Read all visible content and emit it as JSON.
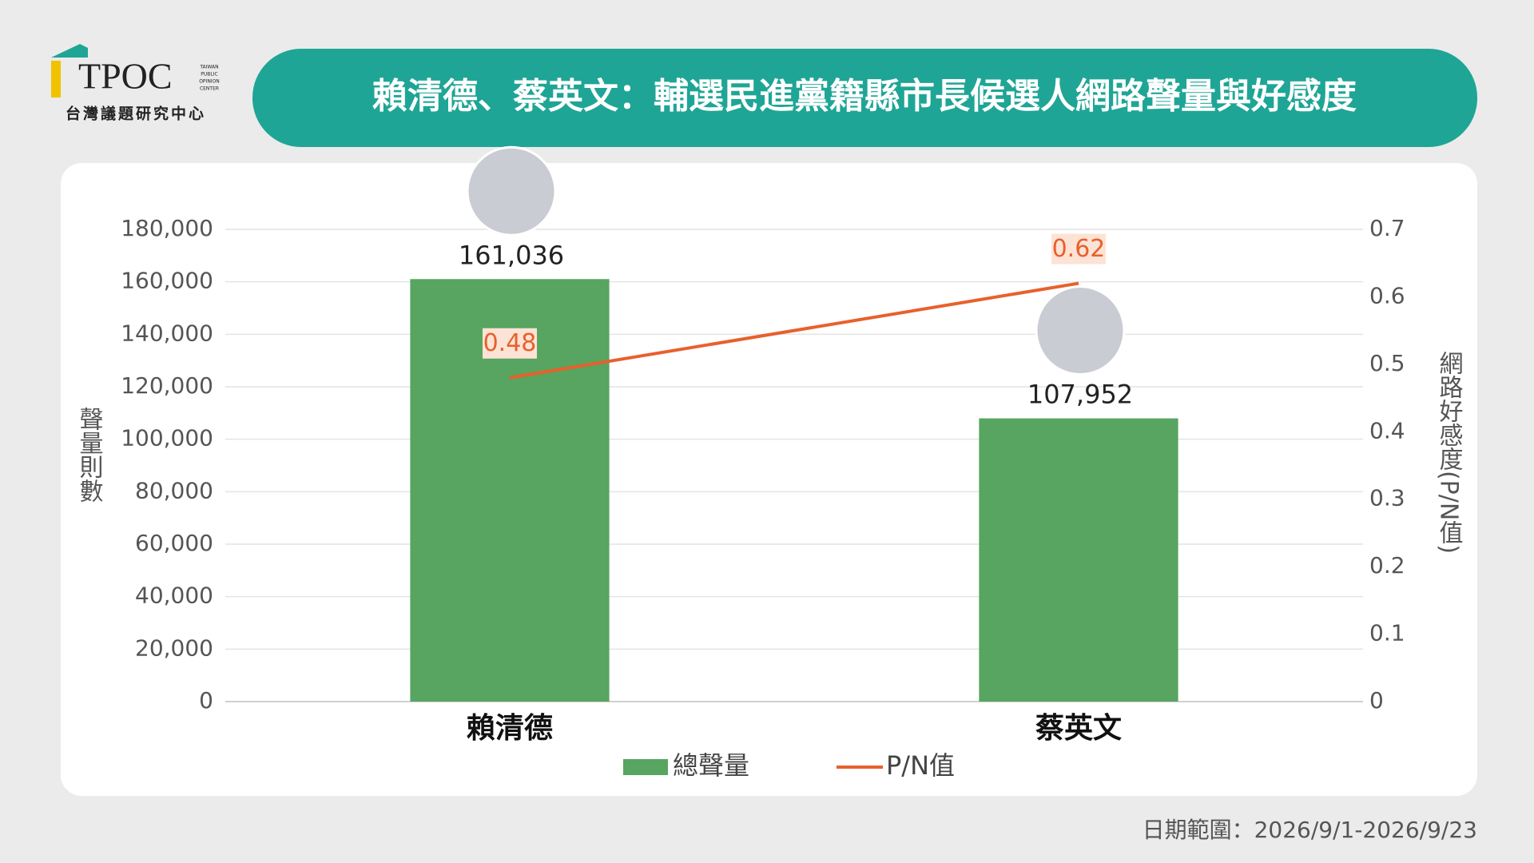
{
  "logo": {
    "name": "TPOC",
    "tag": [
      "TAIWAN",
      "PUBLIC",
      "OPINION",
      "CENTER"
    ],
    "subtitle": "台灣議題研究中心"
  },
  "chart_data": {
    "type": "bar",
    "title": "賴清德、蔡英文：輔選民進黨籍縣市長候選人網路聲量與好感度",
    "categories": [
      "賴清德",
      "蔡英文"
    ],
    "series": [
      {
        "name": "總聲量",
        "color": "#57a560",
        "values": [
          161036,
          107952
        ],
        "value_labels": [
          "161,036",
          "107,952"
        ]
      },
      {
        "name": "P/N值",
        "type": "line",
        "axis": "y2",
        "color": "#e8602c",
        "values": [
          0.48,
          0.62
        ]
      }
    ],
    "ylabel": "聲量則數",
    "y2label": "網路好感度(P/N值)",
    "ylim": [
      0,
      180000
    ],
    "yticks": [
      0,
      {
        "value": 20000,
        "label": "20,000"
      },
      {
        "value": 40000,
        "label": "40,000"
      },
      {
        "value": 60000,
        "label": "60,000"
      },
      {
        "value": 80000,
        "label": "80,000"
      },
      {
        "value": 100000,
        "label": "100,000"
      },
      {
        "value": 120000,
        "label": "120,000"
      },
      {
        "value": 140000,
        "label": "140,000"
      },
      {
        "value": 160000,
        "label": "160,000"
      },
      {
        "value": 180000,
        "label": "180,000"
      }
    ],
    "y2lim": [
      0,
      0.7
    ],
    "y2ticks": [
      0,
      0.1,
      0.2,
      0.3,
      0.4,
      0.5,
      0.6,
      0.7
    ],
    "grid": true,
    "legend": "bottom",
    "note": "日期範圍：2026/9/1-2026/9/23"
  }
}
